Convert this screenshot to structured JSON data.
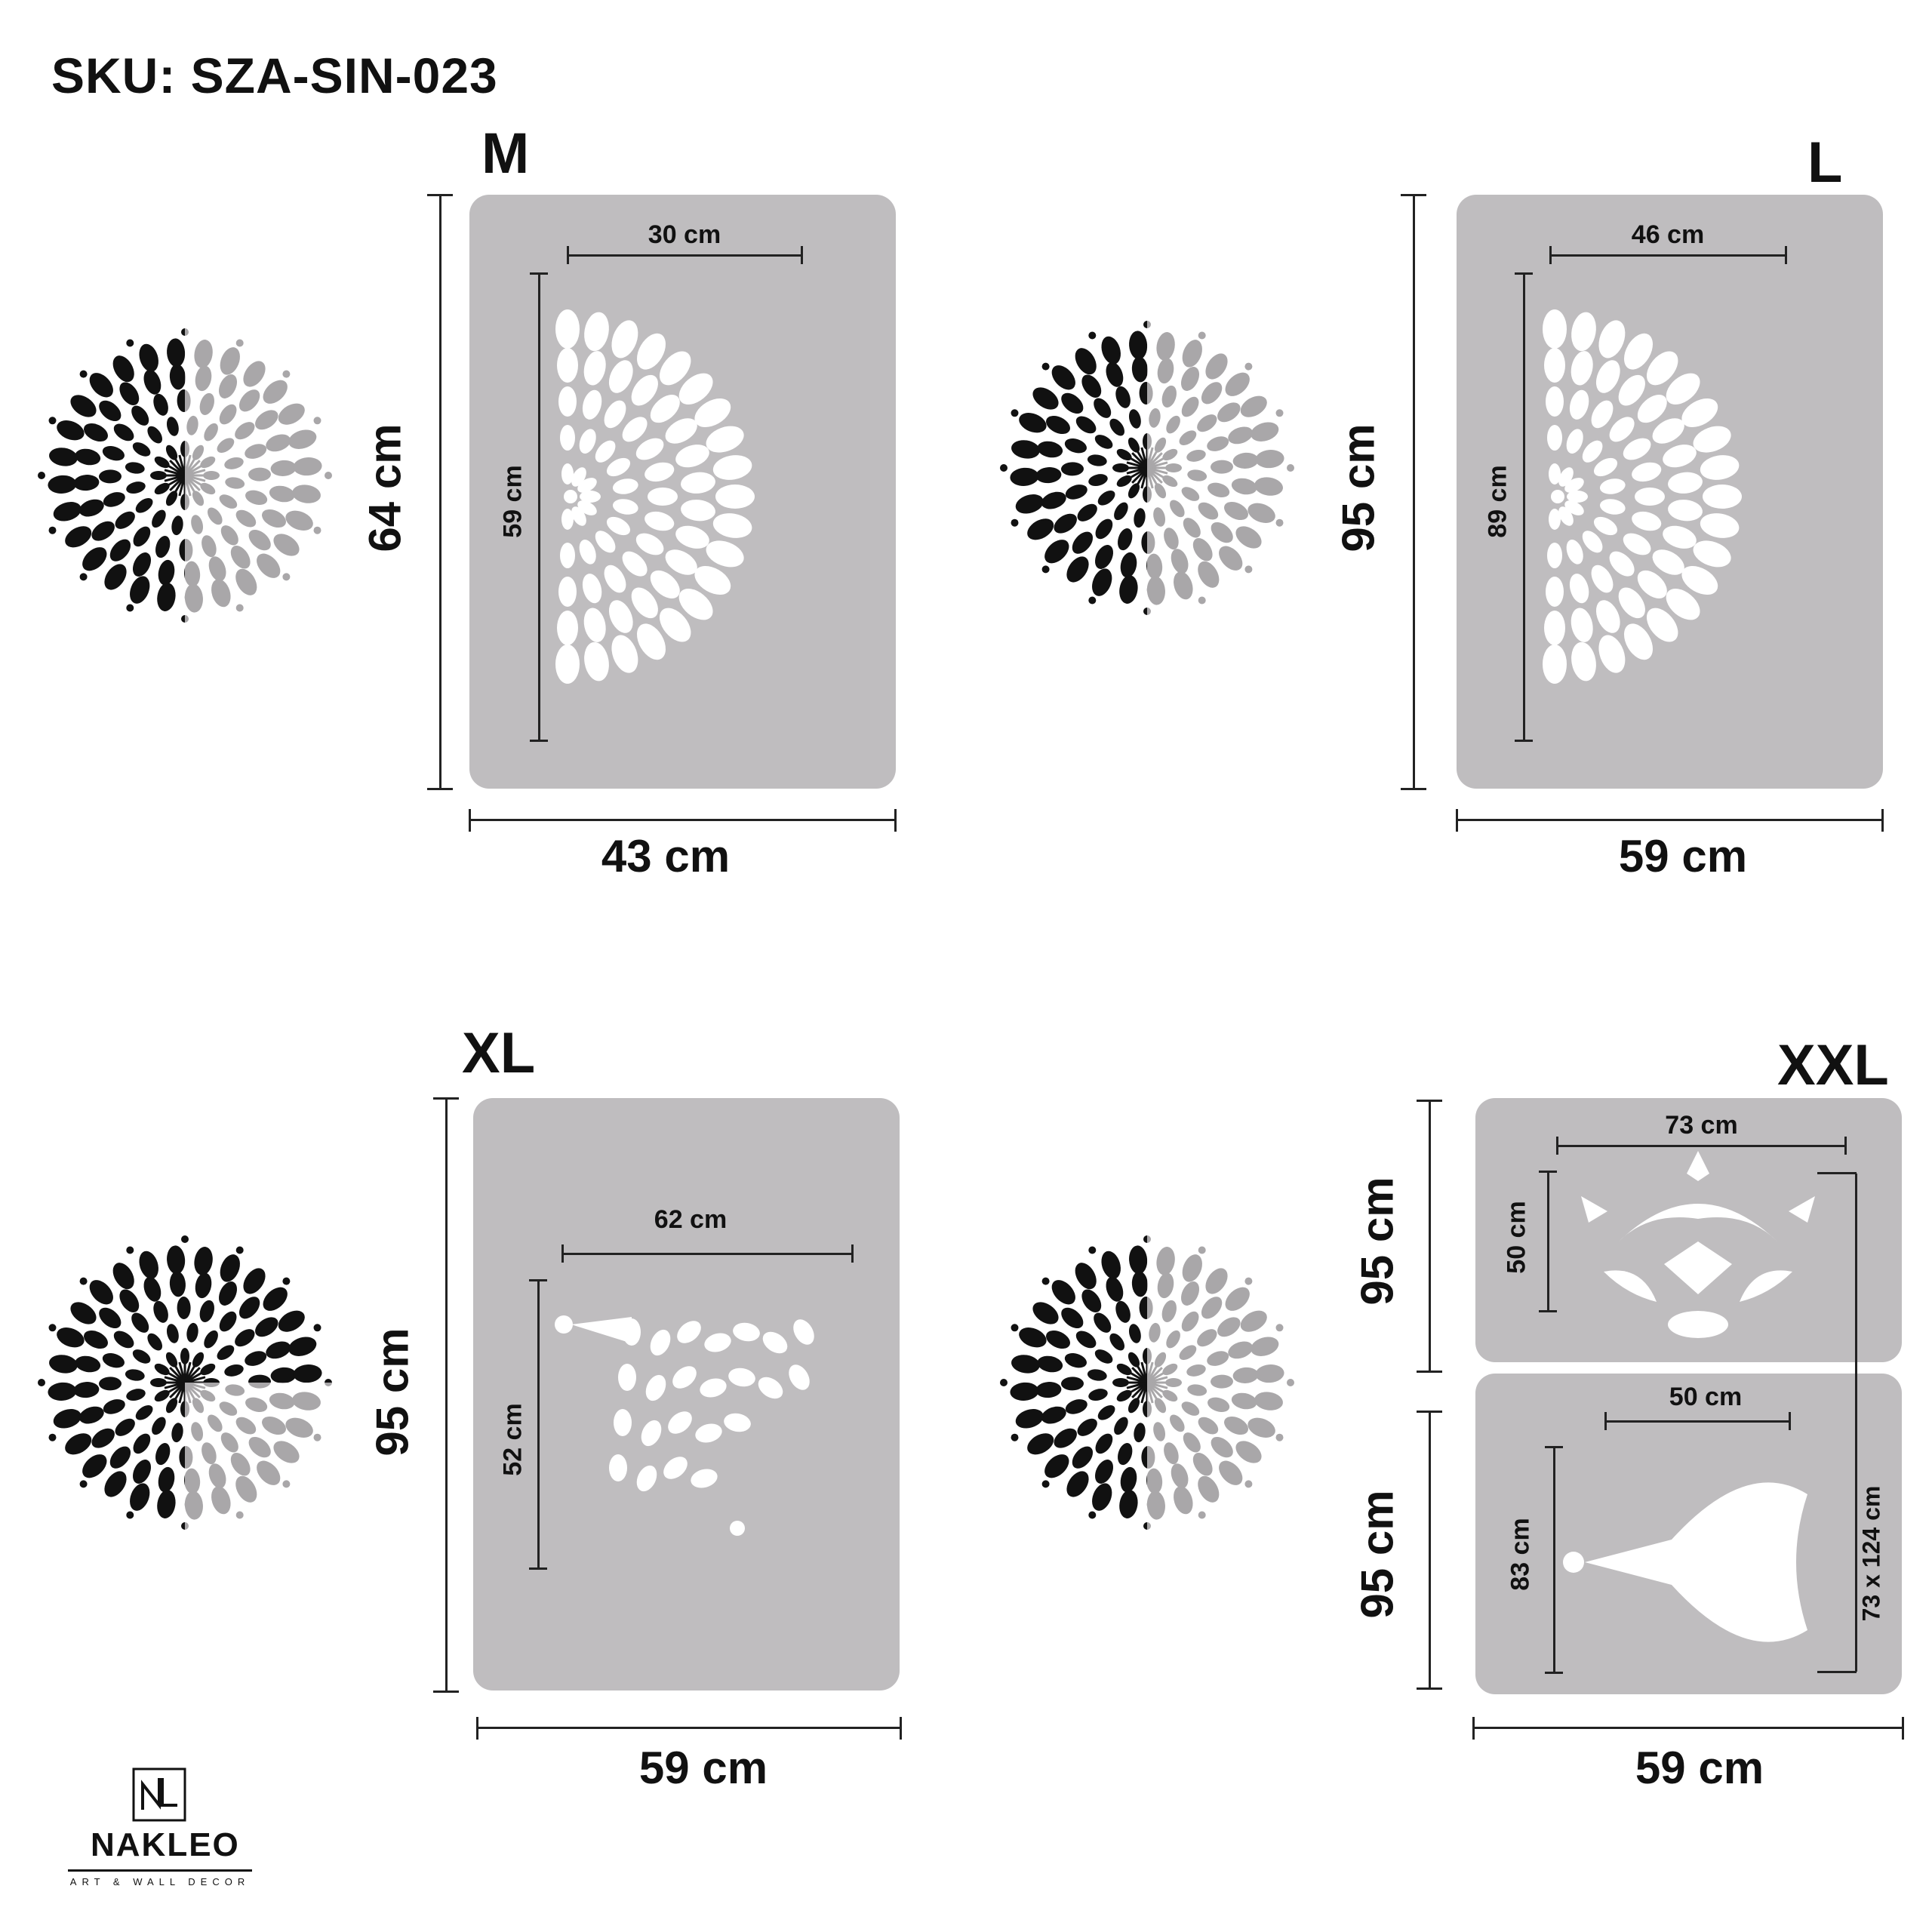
{
  "sku": "SKU: SZA-SIN-023",
  "brand": {
    "name": "NAKLEO",
    "tagline": "ART & WALL DECOR"
  },
  "colors": {
    "panel": "#bfbdbf",
    "dark": "#111111",
    "light_pattern": "#a9a7a9",
    "stencil_cut": "#ffffff"
  },
  "variants": [
    {
      "size": "M",
      "panel_width": "43 cm",
      "panel_height": "64 cm",
      "pattern_width": "30 cm",
      "pattern_height": "59 cm"
    },
    {
      "size": "L",
      "panel_width": "59 cm",
      "panel_height": "95 cm",
      "pattern_width": "46 cm",
      "pattern_height": "89 cm"
    },
    {
      "size": "XL",
      "panel_width": "59 cm",
      "panel_height": "95 cm",
      "pattern_width": "62 cm",
      "pattern_height": "52 cm"
    },
    {
      "size": "XXL",
      "panel_width": "59 cm",
      "panel_height_top": "95 cm",
      "panel_height_bottom": "95 cm",
      "top_pattern_width": "73 cm",
      "top_pattern_height": "50 cm",
      "bottom_pattern_width": "50 cm",
      "bottom_pattern_height": "83 cm",
      "total_pattern": "73 x 124 cm"
    }
  ]
}
